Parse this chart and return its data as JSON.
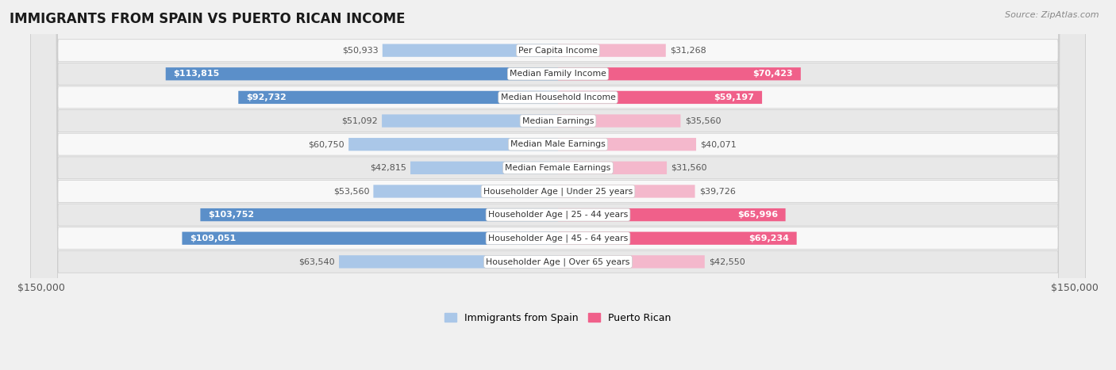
{
  "title": "IMMIGRANTS FROM SPAIN VS PUERTO RICAN INCOME",
  "source": "Source: ZipAtlas.com",
  "categories": [
    "Per Capita Income",
    "Median Family Income",
    "Median Household Income",
    "Median Earnings",
    "Median Male Earnings",
    "Median Female Earnings",
    "Householder Age | Under 25 years",
    "Householder Age | 25 - 44 years",
    "Householder Age | 45 - 64 years",
    "Householder Age | Over 65 years"
  ],
  "spain_values": [
    50933,
    113815,
    92732,
    51092,
    60750,
    42815,
    53560,
    103752,
    109051,
    63540
  ],
  "puerto_rico_values": [
    31268,
    70423,
    59197,
    35560,
    40071,
    31560,
    39726,
    65996,
    69234,
    42550
  ],
  "max_value": 150000,
  "spain_light_color": "#aac7e8",
  "spain_dark_color": "#5b8fc9",
  "puerto_rico_light_color": "#f4b8cc",
  "puerto_rico_dark_color": "#f0608a",
  "spain_label": "Immigrants from Spain",
  "puerto_rico_label": "Puerto Rican",
  "bg_color": "#f0f0f0",
  "row_light_bg": "#f8f8f8",
  "row_dark_bg": "#e8e8e8",
  "spain_dark_threshold": 75000,
  "puerto_rico_dark_threshold": 55000,
  "text_dark": "#555555",
  "text_white": "#ffffff"
}
